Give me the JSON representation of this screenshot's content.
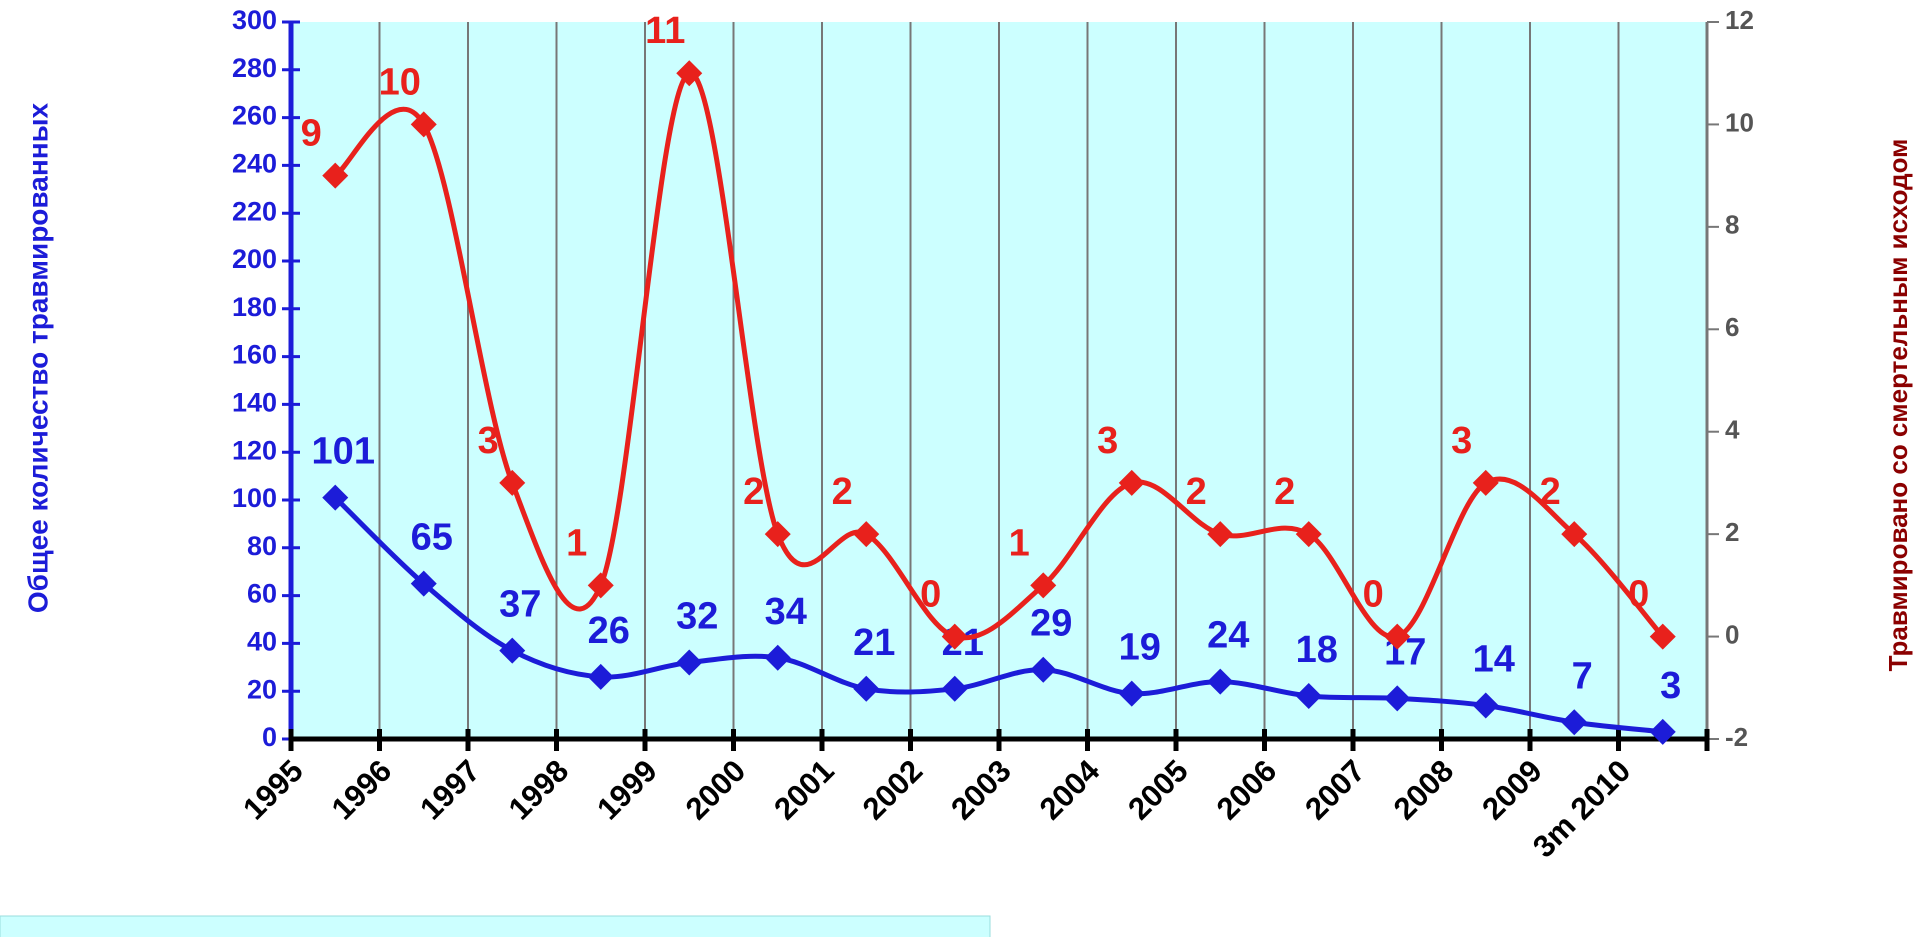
{
  "chart_data": {
    "type": "line",
    "categories": [
      "1995",
      "1996",
      "1997",
      "1998",
      "1999",
      "2000",
      "2001",
      "2002",
      "2003",
      "2004",
      "2005",
      "2006",
      "2007",
      "2008",
      "2009",
      "3m 2010"
    ],
    "series": [
      {
        "name": "Общее количество травмированных",
        "color": "#1c1cd8",
        "axis": "y",
        "values": [
          101,
          65,
          37,
          26,
          32,
          34,
          21,
          21,
          29,
          19,
          24,
          18,
          17,
          14,
          7,
          3
        ]
      },
      {
        "name": "Травмировано  со смертельным исходом",
        "color": "#e8211c",
        "axis": "y2",
        "values": [
          9,
          10,
          3,
          1,
          11,
          2,
          2,
          0,
          1,
          3,
          2,
          2,
          0,
          3,
          2,
          0
        ]
      }
    ],
    "ylabel": "Общее количество травмированных",
    "y2label": "Травмировано  со смертельным исходом",
    "ylim": [
      0,
      300
    ],
    "yticks": [
      0,
      20,
      40,
      60,
      80,
      100,
      120,
      140,
      160,
      180,
      200,
      220,
      240,
      260,
      280,
      300
    ],
    "y2lim": [
      -2,
      12
    ],
    "y2ticks": [
      -2,
      0,
      2,
      4,
      6,
      8,
      10,
      12
    ],
    "grid": true,
    "background": "#ccffff"
  }
}
